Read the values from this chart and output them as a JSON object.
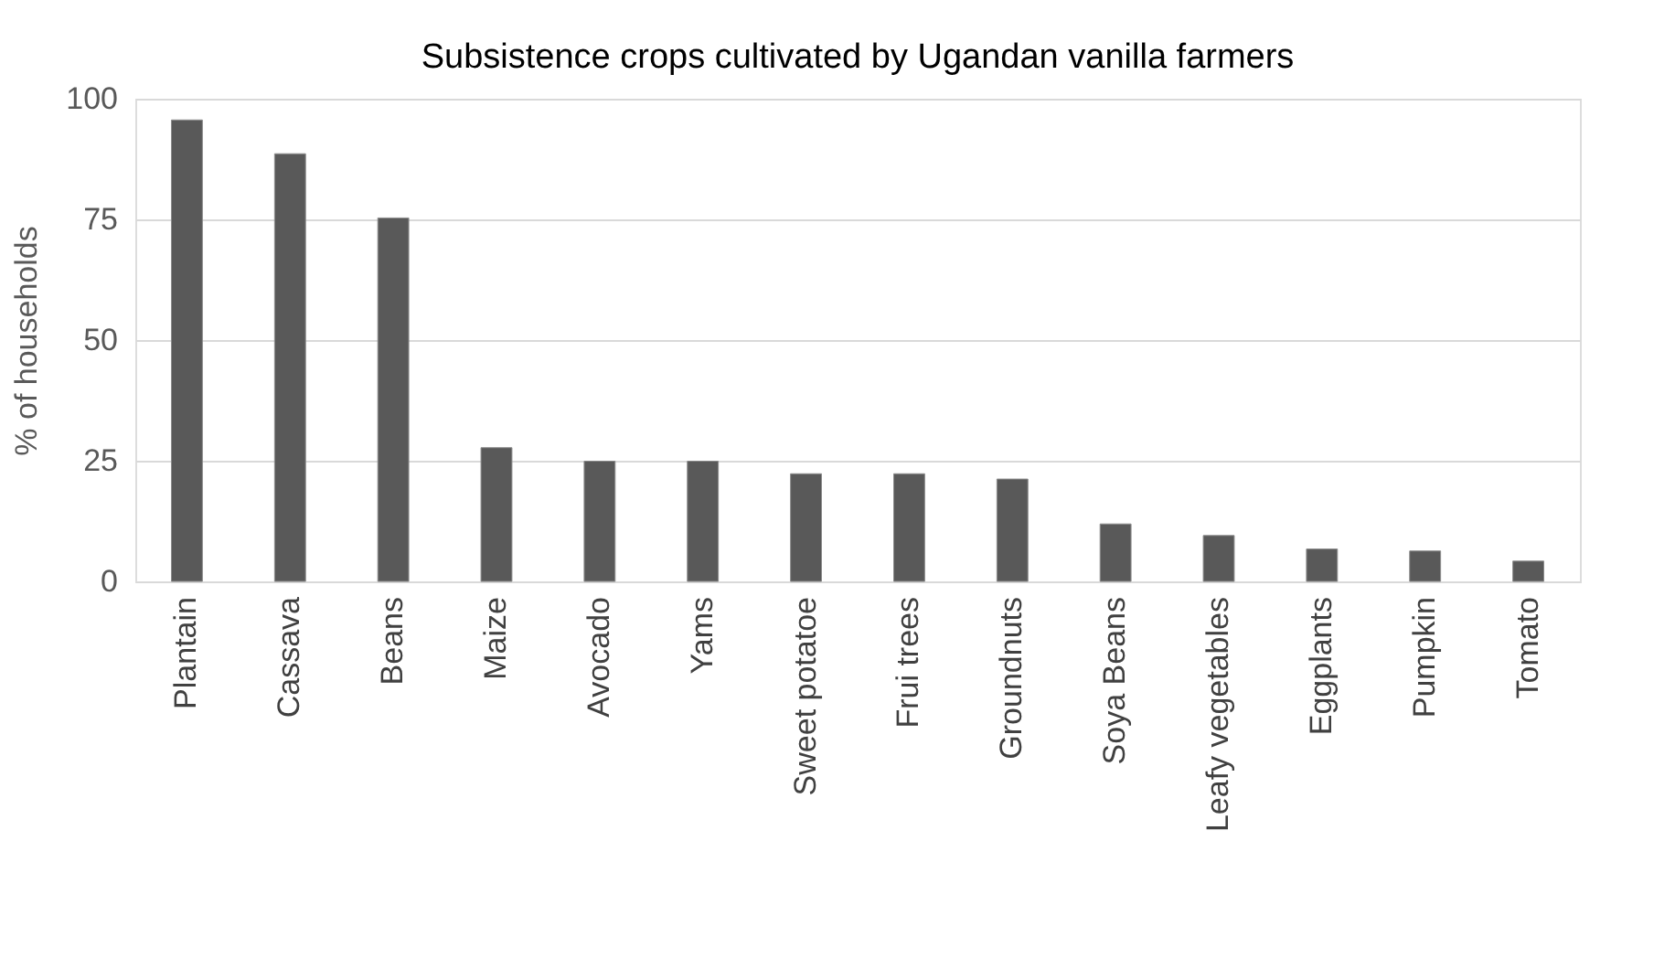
{
  "chart_data": {
    "type": "bar",
    "title": "Subsistence crops cultivated by Ugandan vanilla farmers",
    "ylabel": "% of households",
    "categories": [
      "Plantain",
      "Cassava",
      "Beans",
      "Maize",
      "Avocado",
      "Yams",
      "Sweet potatoe",
      "Frui trees",
      "Groundnuts",
      "Soya Beans",
      "Leafy vegetables",
      "Eggplants",
      "Pumpkin",
      "Tomato"
    ],
    "values": [
      95.6,
      88.6,
      75.3,
      27.7,
      24.9,
      24.9,
      22.3,
      22.3,
      21.2,
      11.9,
      9.5,
      6.7,
      6.3,
      4.2
    ],
    "color": "#595959",
    "ylim": [
      0,
      100
    ],
    "yticks": [
      0,
      25,
      50,
      75,
      100
    ],
    "grid": "y"
  }
}
